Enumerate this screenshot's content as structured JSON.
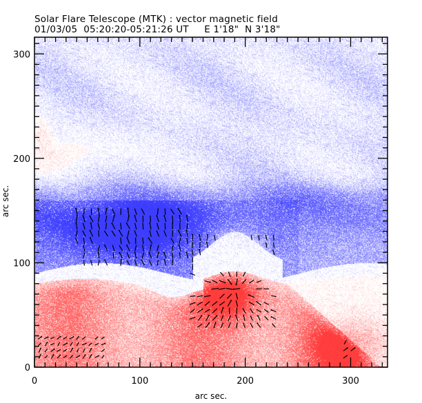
{
  "chart_data": {
    "type": "heatmap",
    "title": "Solar Flare Telescope (MTK) : vector magnetic field",
    "subtitle": "01/03/05  05:20:20-05:21:26 UT     E 1'18\"  N 3'18\"",
    "xlabel": "arc sec.",
    "ylabel": "arc sec.",
    "xlim": [
      0,
      335
    ],
    "ylim": [
      0,
      316
    ],
    "x_ticks": [
      0,
      100,
      200,
      300
    ],
    "y_ticks": [
      0,
      100,
      200,
      300
    ],
    "x_tick_labels": [
      "0",
      "100",
      "200",
      "300"
    ],
    "y_tick_labels": [
      "0",
      "100",
      "200",
      "300"
    ],
    "minor_tick_step": 10,
    "colors": {
      "positive": "#ff3c3c",
      "negative": "#3c3cff",
      "vector": "#000000",
      "background": "#ffffff"
    },
    "field_regions": [
      {
        "polarity": "negative",
        "label": "blue band",
        "x": [
          0,
          335
        ],
        "y": [
          100,
          160
        ],
        "strength": 0.8
      },
      {
        "polarity": "negative",
        "label": "upper diffuse",
        "x": [
          0,
          335
        ],
        "y": [
          160,
          316
        ],
        "strength": 0.35
      },
      {
        "polarity": "positive",
        "label": "red band",
        "x": [
          0,
          240
        ],
        "y": [
          0,
          80
        ],
        "strength": 0.7
      },
      {
        "polarity": "positive",
        "label": "red core",
        "x": [
          160,
          220
        ],
        "y": [
          50,
          90
        ],
        "strength": 1.0
      },
      {
        "polarity": "positive",
        "label": "lower right",
        "x": [
          250,
          335
        ],
        "y": [
          0,
          45
        ],
        "strength": 0.5
      },
      {
        "polarity": "positive",
        "label": "faint left patch",
        "x": [
          0,
          90
        ],
        "y": [
          190,
          240
        ],
        "strength": 0.25
      }
    ],
    "vector_groups": [
      {
        "name": "blue-core-vectors",
        "x": [
          40,
          145
        ],
        "y": [
          100,
          150
        ],
        "step": 7,
        "angle_deg": 100,
        "length": 8
      },
      {
        "name": "sunspot-vectors",
        "x": [
          150,
          230
        ],
        "y": [
          40,
          125
        ],
        "step": 7,
        "angle_deg": 60,
        "length": 8
      },
      {
        "name": "lower-left-vectors",
        "x": [
          5,
          70
        ],
        "y": [
          10,
          30
        ],
        "step": 6,
        "angle_deg": 45,
        "length": 6
      },
      {
        "name": "lower-right-vectors",
        "x": [
          295,
          305
        ],
        "y": [
          10,
          25
        ],
        "step": 7,
        "angle_deg": 45,
        "length": 6
      }
    ]
  }
}
